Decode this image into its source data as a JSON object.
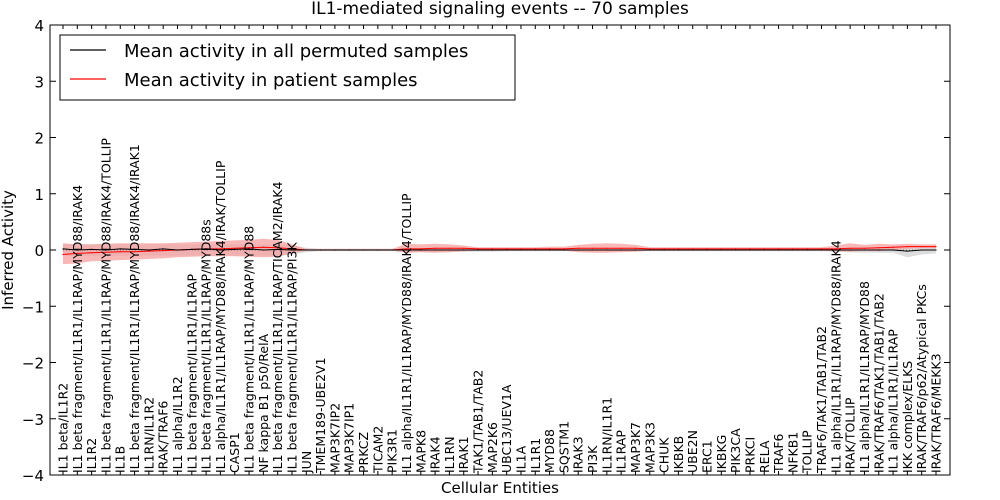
{
  "chart_data": {
    "type": "line",
    "title": "IL1-mediated signaling events -- 70 samples",
    "xlabel": "Cellular Entities",
    "ylabel": "Inferred Activity",
    "ylim": [
      -4,
      4
    ],
    "yticks": [
      -4,
      -3,
      -2,
      -1,
      0,
      1,
      2,
      3,
      4
    ],
    "grid": false,
    "legend_position": "top-left",
    "categories": [
      "IL1 beta/IL1R2",
      "IL1 beta fragment/IL1R1/IL1RAP/MYD88/IRAK4",
      "IL1R2",
      "IL1 beta fragment/IL1R1/IL1RAP/MYD88/IRAK4/TOLLIP",
      "IL1B",
      "IL1 beta fragment/IL1R1/IL1RAP/MYD88/IRAK4/IRAK1",
      "IL1RN/IL1R2",
      "IRAK/TRAF6",
      "IL1 alpha/IL1R2",
      "IL1 beta fragment/IL1R1/IL1RAP",
      "IL1 beta fragment/IL1R1/IL1RAP/MYD88s",
      "IL1 alpha/IL1R1/IL1RAP/MYD88/IRAK4/IRAK/TOLLIP",
      "CASP1",
      "IL1 beta fragment/IL1R1/IL1RAP/MYD88",
      "NF kappa B1 p50/RelA",
      "IL1 beta fragment/IL1R1/IL1RAP/TICAM2/IRAK4",
      "IL1 beta fragment/IL1R1/IL1RAP/PI3K",
      "JUN",
      "TMEM189-UBE2V1",
      "MAP3K7IP2",
      "MAP3K7IP1",
      "PRKCZ",
      "TICAM2",
      "PIK3R1",
      "IL1 alpha/IL1R1/IL1RAP/MYD88/IRAK4/TOLLIP",
      "MAPK8",
      "IRAK4",
      "IL1RN",
      "IRAK1",
      "TAK1/TAB1/TAB2",
      "MAP2K6",
      "UBC13/UEV1A",
      "IL1A",
      "IL1R1",
      "MYD88",
      "SQSTM1",
      "IRAK3",
      "PI3K",
      "IL1RN/IL1R1",
      "IL1RAP",
      "MAP3K7",
      "MAP3K3",
      "CHUK",
      "IKBKB",
      "UBE2N",
      "ERC1",
      "IKBKG",
      "PIK3CA",
      "PRKCI",
      "RELA",
      "TRAF6",
      "NFKB1",
      "TOLLIP",
      "TRAF6/TAK1/TAB1/TAB2",
      "IL1 alpha/IL1R1/IL1RAP/MYD88/IRAK4",
      "IRAK/TOLLIP",
      "IL1 alpha/IL1R1/IL1RAP/MYD88",
      "IRAK/TRAF6/TAK1/TAB1/TAB2",
      "IL1 alpha/IL1R1/IL1RAP",
      "IKK complex/ELKS",
      "IRAK/TRAF6/p62/Atypical PKCs",
      "IRAK/TRAF6/MEKK3"
    ],
    "series": [
      {
        "name": "Mean activity in all permuted samples",
        "color": "#000000",
        "values": [
          0.02,
          0.0,
          0.01,
          0.0,
          0.02,
          0.01,
          0.0,
          0.02,
          0.0,
          0.01,
          0.02,
          0.0,
          0.01,
          0.02,
          0.0,
          0.01,
          0.0,
          0.0,
          0.0,
          0.0,
          0.0,
          0.0,
          0.0,
          0.0,
          0.0,
          0.0,
          0.0,
          0.0,
          0.0,
          0.0,
          0.0,
          0.0,
          0.0,
          0.0,
          0.0,
          0.0,
          0.0,
          0.0,
          0.0,
          0.0,
          0.0,
          0.0,
          0.0,
          0.0,
          0.0,
          0.0,
          0.0,
          0.0,
          0.0,
          0.0,
          0.0,
          0.0,
          0.0,
          0.0,
          0.0,
          0.0,
          0.0,
          0.0,
          0.0,
          -0.02,
          0.0,
          0.0
        ],
        "band": {
          "color": "#d9d9d9",
          "lower": [
            -0.1,
            -0.11,
            -0.1,
            -0.11,
            -0.1,
            -0.1,
            -0.1,
            -0.1,
            -0.1,
            -0.1,
            -0.1,
            -0.1,
            -0.1,
            -0.1,
            -0.1,
            -0.1,
            -0.08,
            -0.04,
            -0.02,
            -0.02,
            -0.02,
            -0.02,
            -0.02,
            -0.02,
            -0.04,
            -0.04,
            -0.04,
            -0.04,
            -0.03,
            -0.03,
            -0.03,
            -0.02,
            -0.02,
            -0.02,
            -0.02,
            -0.02,
            -0.02,
            -0.02,
            -0.02,
            -0.02,
            -0.02,
            -0.02,
            -0.02,
            -0.02,
            -0.02,
            -0.02,
            -0.02,
            -0.02,
            -0.02,
            -0.02,
            -0.02,
            -0.02,
            -0.02,
            -0.02,
            -0.03,
            -0.04,
            -0.05,
            -0.05,
            -0.05,
            -0.13,
            -0.08,
            -0.06
          ],
          "upper": [
            0.1,
            0.11,
            0.1,
            0.11,
            0.1,
            0.1,
            0.1,
            0.1,
            0.1,
            0.1,
            0.1,
            0.1,
            0.1,
            0.1,
            0.1,
            0.1,
            0.08,
            0.04,
            0.02,
            0.02,
            0.02,
            0.02,
            0.02,
            0.02,
            0.04,
            0.04,
            0.04,
            0.04,
            0.03,
            0.03,
            0.03,
            0.02,
            0.02,
            0.02,
            0.02,
            0.02,
            0.02,
            0.02,
            0.02,
            0.02,
            0.02,
            0.02,
            0.02,
            0.02,
            0.02,
            0.02,
            0.02,
            0.02,
            0.02,
            0.02,
            0.02,
            0.02,
            0.02,
            0.02,
            0.03,
            0.04,
            0.05,
            0.05,
            0.05,
            0.05,
            0.05,
            0.06
          ]
        }
      },
      {
        "name": "Mean activity in patient samples",
        "color": "#ff0000",
        "values": [
          -0.08,
          -0.06,
          -0.05,
          -0.04,
          -0.03,
          -0.03,
          -0.02,
          -0.01,
          0.0,
          0.01,
          0.02,
          0.02,
          0.03,
          0.04,
          0.05,
          0.04,
          0.02,
          0.0,
          0.0,
          0.0,
          0.0,
          0.0,
          0.0,
          0.0,
          0.02,
          0.02,
          0.03,
          0.03,
          0.03,
          0.02,
          0.02,
          0.02,
          0.02,
          0.02,
          0.02,
          0.02,
          0.03,
          0.03,
          0.03,
          0.03,
          0.03,
          0.02,
          0.02,
          0.02,
          0.02,
          0.02,
          0.02,
          0.02,
          0.02,
          0.02,
          0.02,
          0.02,
          0.02,
          0.02,
          0.02,
          0.03,
          0.03,
          0.04,
          0.05,
          0.06,
          0.06,
          0.06
        ],
        "band": {
          "color": "#f5a0a0",
          "lower": [
            -0.25,
            -0.24,
            -0.2,
            -0.19,
            -0.18,
            -0.17,
            -0.16,
            -0.15,
            -0.13,
            -0.12,
            -0.11,
            -0.11,
            -0.11,
            -0.12,
            -0.13,
            -0.12,
            -0.06,
            -0.01,
            -0.01,
            -0.01,
            -0.01,
            -0.01,
            -0.01,
            -0.01,
            -0.05,
            -0.04,
            -0.05,
            -0.04,
            -0.02,
            -0.01,
            -0.01,
            -0.01,
            -0.01,
            -0.01,
            -0.01,
            -0.01,
            -0.04,
            -0.05,
            -0.05,
            -0.04,
            -0.03,
            -0.01,
            -0.01,
            -0.01,
            -0.01,
            -0.01,
            -0.01,
            -0.01,
            -0.01,
            -0.01,
            -0.01,
            -0.01,
            -0.01,
            -0.01,
            -0.02,
            -0.03,
            -0.01,
            -0.02,
            0.0,
            0.02,
            0.03,
            0.03
          ],
          "upper": [
            0.12,
            0.1,
            0.1,
            0.11,
            0.12,
            0.12,
            0.12,
            0.12,
            0.13,
            0.14,
            0.15,
            0.16,
            0.17,
            0.18,
            0.2,
            0.18,
            0.1,
            0.02,
            0.02,
            0.02,
            0.02,
            0.02,
            0.02,
            0.02,
            0.11,
            0.1,
            0.11,
            0.1,
            0.08,
            0.05,
            0.05,
            0.05,
            0.05,
            0.05,
            0.06,
            0.06,
            0.09,
            0.11,
            0.12,
            0.11,
            0.09,
            0.05,
            0.05,
            0.05,
            0.05,
            0.05,
            0.05,
            0.05,
            0.05,
            0.05,
            0.05,
            0.05,
            0.05,
            0.05,
            0.08,
            0.12,
            0.09,
            0.11,
            0.1,
            0.11,
            0.1,
            0.1
          ]
        }
      }
    ]
  }
}
